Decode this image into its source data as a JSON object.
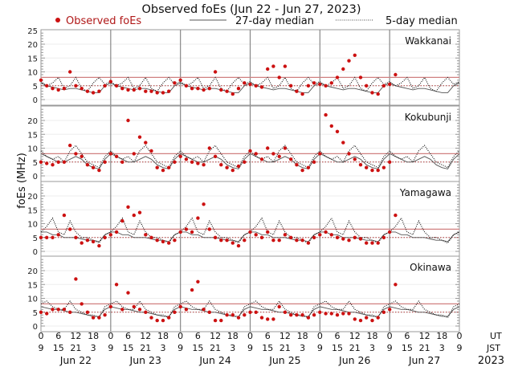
{
  "chart_data": {
    "type": "scatter",
    "title": "Observed foEs (Jun 22 - Jun 27, 2023)",
    "ylabel": "foEs (MHz)",
    "legend": [
      "Observed foEs",
      "27-day median",
      "5-day median"
    ],
    "legend_placement": "top",
    "colors": {
      "observed": "#cc1111",
      "ref_line": "#d08080",
      "median": "#333333"
    },
    "x_unit_labels": [
      "UT",
      "JST"
    ],
    "ut_ticks": [
      "0",
      "6",
      "12",
      "18",
      "0",
      "6",
      "12",
      "18",
      "0",
      "6",
      "12",
      "18",
      "0",
      "6",
      "12",
      "18",
      "0",
      "6",
      "12",
      "18",
      "0",
      "6",
      "12",
      "18",
      "0"
    ],
    "jst_ticks": [
      "9",
      "15",
      "21",
      "3",
      "9",
      "15",
      "21",
      "3",
      "9",
      "15",
      "21",
      "3",
      "9",
      "15",
      "21",
      "3",
      "9",
      "15",
      "21",
      "3",
      "9",
      "15",
      "21",
      "3",
      "9"
    ],
    "days": [
      "Jun 22",
      "Jun 23",
      "Jun 24",
      "Jun 25",
      "Jun 26",
      "Jun 27"
    ],
    "year": "2023",
    "sample_interval_hours": 2,
    "reference_lines": {
      "upper_solid": 8,
      "lower_dotted": 5
    },
    "ylim": [
      -1.5,
      25
    ],
    "panels": [
      {
        "station": "Wakkanai",
        "yticks": [
          "0",
          "5",
          "10",
          "15",
          "20",
          "25"
        ],
        "observed": [
          7,
          5,
          4,
          3.5,
          4,
          10,
          5,
          4,
          3,
          2.5,
          3,
          5,
          6.5,
          5,
          4,
          3.5,
          3.5,
          4,
          3,
          3,
          2.5,
          2.5,
          3,
          6,
          7,
          5,
          4,
          4,
          3.5,
          4,
          10,
          3.5,
          3,
          2,
          4,
          6,
          5.5,
          5,
          4.5,
          11,
          12,
          8,
          12,
          5,
          3,
          2,
          5,
          6,
          5.5,
          5,
          6,
          8,
          11,
          14,
          16,
          8,
          5,
          2.5,
          2,
          5,
          5.5,
          9,
          null,
          null,
          null,
          null,
          null,
          null,
          null,
          null,
          null,
          null
        ],
        "median27": [
          6,
          5,
          4.5,
          4,
          3.5,
          4,
          4,
          3.5,
          3,
          2.5,
          2.5,
          5
        ],
        "median5": [
          6.5,
          5,
          6,
          8,
          4,
          5,
          8,
          4,
          3,
          6,
          8,
          5.5
        ]
      },
      {
        "station": "Kokubunji",
        "yticks": [
          "0",
          "5",
          "10",
          "15",
          "20"
        ],
        "observed": [
          5,
          4.5,
          4,
          5,
          5,
          11,
          8,
          7,
          4,
          3,
          2,
          5,
          8,
          7,
          5,
          20,
          8,
          14,
          12,
          9,
          3,
          2,
          3,
          5,
          7,
          6,
          5,
          4.5,
          4,
          10,
          7,
          4,
          3,
          2,
          3.5,
          5,
          9,
          8,
          6,
          10,
          8,
          7,
          10,
          6,
          4,
          2,
          3,
          5,
          8,
          22,
          18,
          16,
          12,
          8,
          6,
          4,
          3,
          2,
          2,
          3,
          5,
          null,
          null,
          null,
          null,
          null,
          null,
          null,
          null,
          null,
          null,
          null
        ],
        "median27": [
          8,
          7,
          6,
          5,
          5,
          6,
          7,
          6,
          4,
          3,
          2.5,
          6
        ],
        "median5": [
          9,
          7,
          6,
          7,
          5,
          9,
          11,
          8,
          5,
          4,
          3,
          7
        ]
      },
      {
        "station": "Yamagawa",
        "yticks": [
          "0",
          "5",
          "10",
          "15",
          "20"
        ],
        "observed": [
          5,
          5,
          5,
          6,
          13,
          8,
          5,
          3,
          4,
          3.5,
          2,
          5,
          6,
          7,
          11,
          16,
          13,
          14,
          6,
          5,
          4,
          3.5,
          3,
          4,
          7,
          8,
          7,
          12,
          17,
          8,
          5,
          4,
          4,
          3,
          2,
          4,
          7,
          6,
          5,
          7,
          4,
          4,
          6,
          5,
          4,
          4,
          3,
          5,
          6,
          7,
          6,
          5,
          4.5,
          4,
          5,
          4.5,
          3,
          3,
          3,
          5,
          7,
          13,
          null,
          null,
          null,
          null,
          null,
          null,
          null,
          null,
          null,
          null
        ],
        "median27": [
          7,
          7,
          6,
          6,
          5,
          5,
          5,
          4.5,
          4,
          4,
          3.5,
          6
        ],
        "median5": [
          7,
          9,
          12,
          7,
          6,
          11,
          7,
          5,
          5,
          4,
          3,
          6
        ]
      },
      {
        "station": "Okinawa",
        "yticks": [
          "0",
          "5",
          "10",
          "15",
          "20"
        ],
        "observed": [
          5,
          4.5,
          6,
          6,
          6,
          5,
          17,
          8,
          5,
          3,
          3,
          4,
          7,
          15,
          6,
          12,
          7,
          6,
          5,
          3,
          2,
          2,
          3,
          5,
          7,
          6,
          13,
          16,
          6,
          5,
          2,
          2,
          4,
          4,
          3,
          4,
          5,
          5,
          3,
          2.5,
          2.5,
          7,
          5,
          4,
          4,
          4,
          3,
          4,
          5,
          4.5,
          4.5,
          4,
          4.5,
          4.5,
          2.5,
          2,
          3,
          2,
          3,
          5,
          6,
          15,
          null,
          null,
          null,
          null,
          null,
          null,
          null,
          null,
          null,
          null
        ],
        "median27": [
          7,
          6.5,
          6,
          6,
          5.5,
          5,
          5,
          4.5,
          4,
          3.5,
          3.5,
          6
        ],
        "median5": [
          8,
          9,
          7,
          6,
          6,
          9,
          6,
          5,
          4,
          4,
          3,
          7
        ]
      }
    ]
  }
}
